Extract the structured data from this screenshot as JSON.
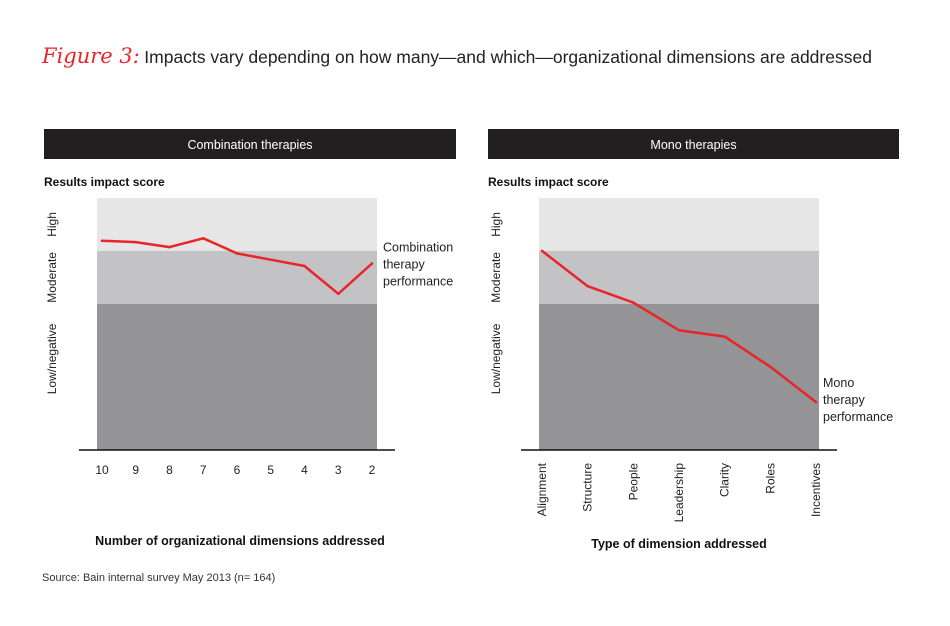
{
  "figure": {
    "label": "Figure 3:",
    "title": "Impacts vary depending on how many—and which—organizational dimensions are addressed"
  },
  "source": "Source: Bain internal survey May 2013 (n= 164)",
  "colors": {
    "accent": "#e8262a",
    "header_bg": "#231f20",
    "band_high": "#e6e6e7",
    "band_moderate": "#c3c3c6",
    "band_low": "#949497"
  },
  "chart_data": [
    {
      "type": "line",
      "header": "Combination therapies",
      "ylabel": "Results impact score",
      "y_bands": [
        "High",
        "Moderate",
        "Low/negative"
      ],
      "xlabel": "Number of organizational dimensions addressed",
      "categories": [
        "10",
        "9",
        "8",
        "7",
        "6",
        "5",
        "4",
        "3",
        "2"
      ],
      "ylim": [
        0,
        100
      ],
      "band_bounds": [
        0,
        58,
        79,
        100
      ],
      "series": [
        {
          "name": "Combination therapy performance",
          "values": [
            83,
            82.5,
            80.5,
            84,
            78,
            75.5,
            73,
            62,
            74
          ]
        }
      ],
      "annotation": [
        "Combination",
        "therapy",
        "performance"
      ]
    },
    {
      "type": "line",
      "header": "Mono therapies",
      "ylabel": "Results impact score",
      "y_bands": [
        "High",
        "Moderate",
        "Low/negative"
      ],
      "xlabel": "Type of dimension addressed",
      "categories": [
        "Alignment",
        "Structure",
        "People",
        "Leadership",
        "Clarity",
        "Roles",
        "Incentives"
      ],
      "ylim": [
        0,
        100
      ],
      "band_bounds": [
        0,
        58,
        79,
        100
      ],
      "series": [
        {
          "name": "Mono therapy performance",
          "values": [
            79,
            65,
            58.5,
            47.5,
            45,
            33,
            19
          ]
        }
      ],
      "annotation": [
        "Mono",
        "therapy",
        "performance"
      ]
    }
  ]
}
